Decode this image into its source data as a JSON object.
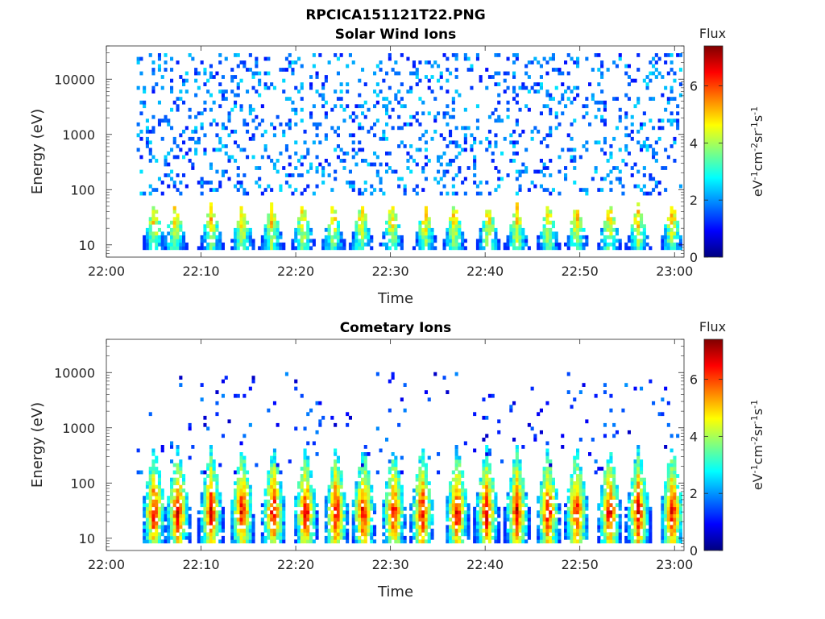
{
  "figure_title": "RPCICA151121T22.PNG",
  "colorbar": {
    "title": "Flux",
    "label_main": "eV",
    "label_parts": [
      "eV",
      "-1",
      "cm",
      "-2",
      "sr",
      "-1",
      "s",
      "-1"
    ],
    "range": [
      0,
      7.4
    ],
    "ticks": [
      "0",
      "2",
      "4",
      "6"
    ],
    "colormap": [
      "#00007f",
      "#0000ff",
      "#007fff",
      "#00ffff",
      "#7fff7f",
      "#ffff00",
      "#ff7f00",
      "#ff0000",
      "#7f0000"
    ]
  },
  "chart_data": [
    {
      "type": "heatmap",
      "title": "Solar Wind Ions",
      "xlabel": "Time",
      "ylabel": "Energy (eV)",
      "x_ticks": [
        "22:00",
        "22:10",
        "22:20",
        "22:30",
        "22:40",
        "22:50",
        "23:00"
      ],
      "x_range_minutes": [
        0,
        61
      ],
      "y_scale": "log",
      "y_ticks": [
        "10",
        "100",
        "1000",
        "10000"
      ],
      "y_range": [
        6,
        40000
      ],
      "data_start_minute": 3.2,
      "data_end_minute": 60.5,
      "bursts_minute": [
        4.9,
        7.1,
        10.9,
        14.2,
        17.3,
        20.6,
        23.8,
        26.8,
        30.0,
        33.5,
        36.6,
        40.2,
        43.2,
        46.5,
        49.5,
        53.0,
        56.0,
        59.6
      ],
      "burst_peak_flux": 5.2,
      "burst_energy_range_eV": [
        8,
        60
      ],
      "burst_peak_energy_eV": 30,
      "background_energy_range_eV": [
        80,
        30000
      ],
      "background_flux_range": [
        1.0,
        2.6
      ]
    },
    {
      "type": "heatmap",
      "title": "Cometary Ions",
      "xlabel": "Time",
      "ylabel": "Energy (eV)",
      "x_ticks": [
        "22:00",
        "22:10",
        "22:20",
        "22:30",
        "22:40",
        "22:50",
        "23:00"
      ],
      "x_range_minutes": [
        0,
        61
      ],
      "y_scale": "log",
      "y_ticks": [
        "10",
        "100",
        "1000",
        "10000"
      ],
      "y_range": [
        6,
        40000
      ],
      "data_start_minute": 3.2,
      "data_end_minute": 60.5,
      "bursts_minute": [
        4.9,
        7.4,
        10.9,
        14.2,
        17.5,
        20.9,
        24.1,
        27.0,
        30.2,
        33.2,
        36.9,
        40.0,
        43.2,
        46.5,
        49.5,
        53.0,
        56.0,
        59.6
      ],
      "burst_peak_flux": 7.0,
      "burst_energy_range_eV": [
        8,
        500
      ],
      "burst_peak_energy_eV": 30,
      "background_energy_range_eV": [
        150,
        10000
      ],
      "background_flux_range": [
        0.5,
        2.0
      ]
    }
  ]
}
